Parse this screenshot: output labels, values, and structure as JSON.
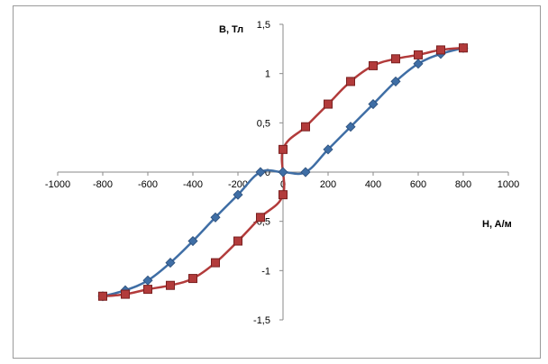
{
  "chart_data": {
    "type": "line",
    "xlabel": "H,  A/м",
    "ylabel": "B, Тл",
    "xlim": [
      -1000,
      1000
    ],
    "ylim": [
      -1.5,
      1.5
    ],
    "x_ticks": [
      "-1000",
      "-800",
      "-600",
      "-400",
      "-200",
      "0",
      "200",
      "400",
      "600",
      "800",
      "1000"
    ],
    "y_ticks": [
      "1,5",
      "1",
      "0,5",
      "0",
      "-0,5",
      "-1",
      "-1,5"
    ],
    "x_tick_values": [
      -1000,
      -800,
      -600,
      -400,
      -200,
      0,
      200,
      400,
      600,
      800,
      1000
    ],
    "y_tick_values": [
      1.5,
      1,
      0.5,
      0,
      -0.5,
      -1,
      -1.5
    ],
    "grid": false,
    "legend": "none",
    "series": [
      {
        "color": "#3f6ea5",
        "marker": "diamond",
        "x": [
          -800,
          -700,
          -600,
          -500,
          -400,
          -300,
          -200,
          -100,
          0,
          100,
          200,
          300,
          400,
          500,
          600,
          700,
          800
        ],
        "y": [
          -1.26,
          -1.2,
          -1.1,
          -0.92,
          -0.7,
          -0.46,
          -0.23,
          0.0,
          0.0,
          0.0,
          0.23,
          0.46,
          0.69,
          0.92,
          1.1,
          1.2,
          1.26
        ]
      },
      {
        "color": "#b23b3b",
        "marker": "square",
        "x": [
          -800,
          -700,
          -600,
          -500,
          -400,
          -300,
          -200,
          -100,
          0,
          0,
          100,
          200,
          300,
          400,
          500,
          600,
          700,
          800
        ],
        "y": [
          -1.26,
          -1.24,
          -1.19,
          -1.15,
          -1.08,
          -0.92,
          -0.7,
          -0.46,
          -0.23,
          0.23,
          0.46,
          0.69,
          0.92,
          1.08,
          1.15,
          1.19,
          1.24,
          1.26
        ]
      }
    ]
  }
}
